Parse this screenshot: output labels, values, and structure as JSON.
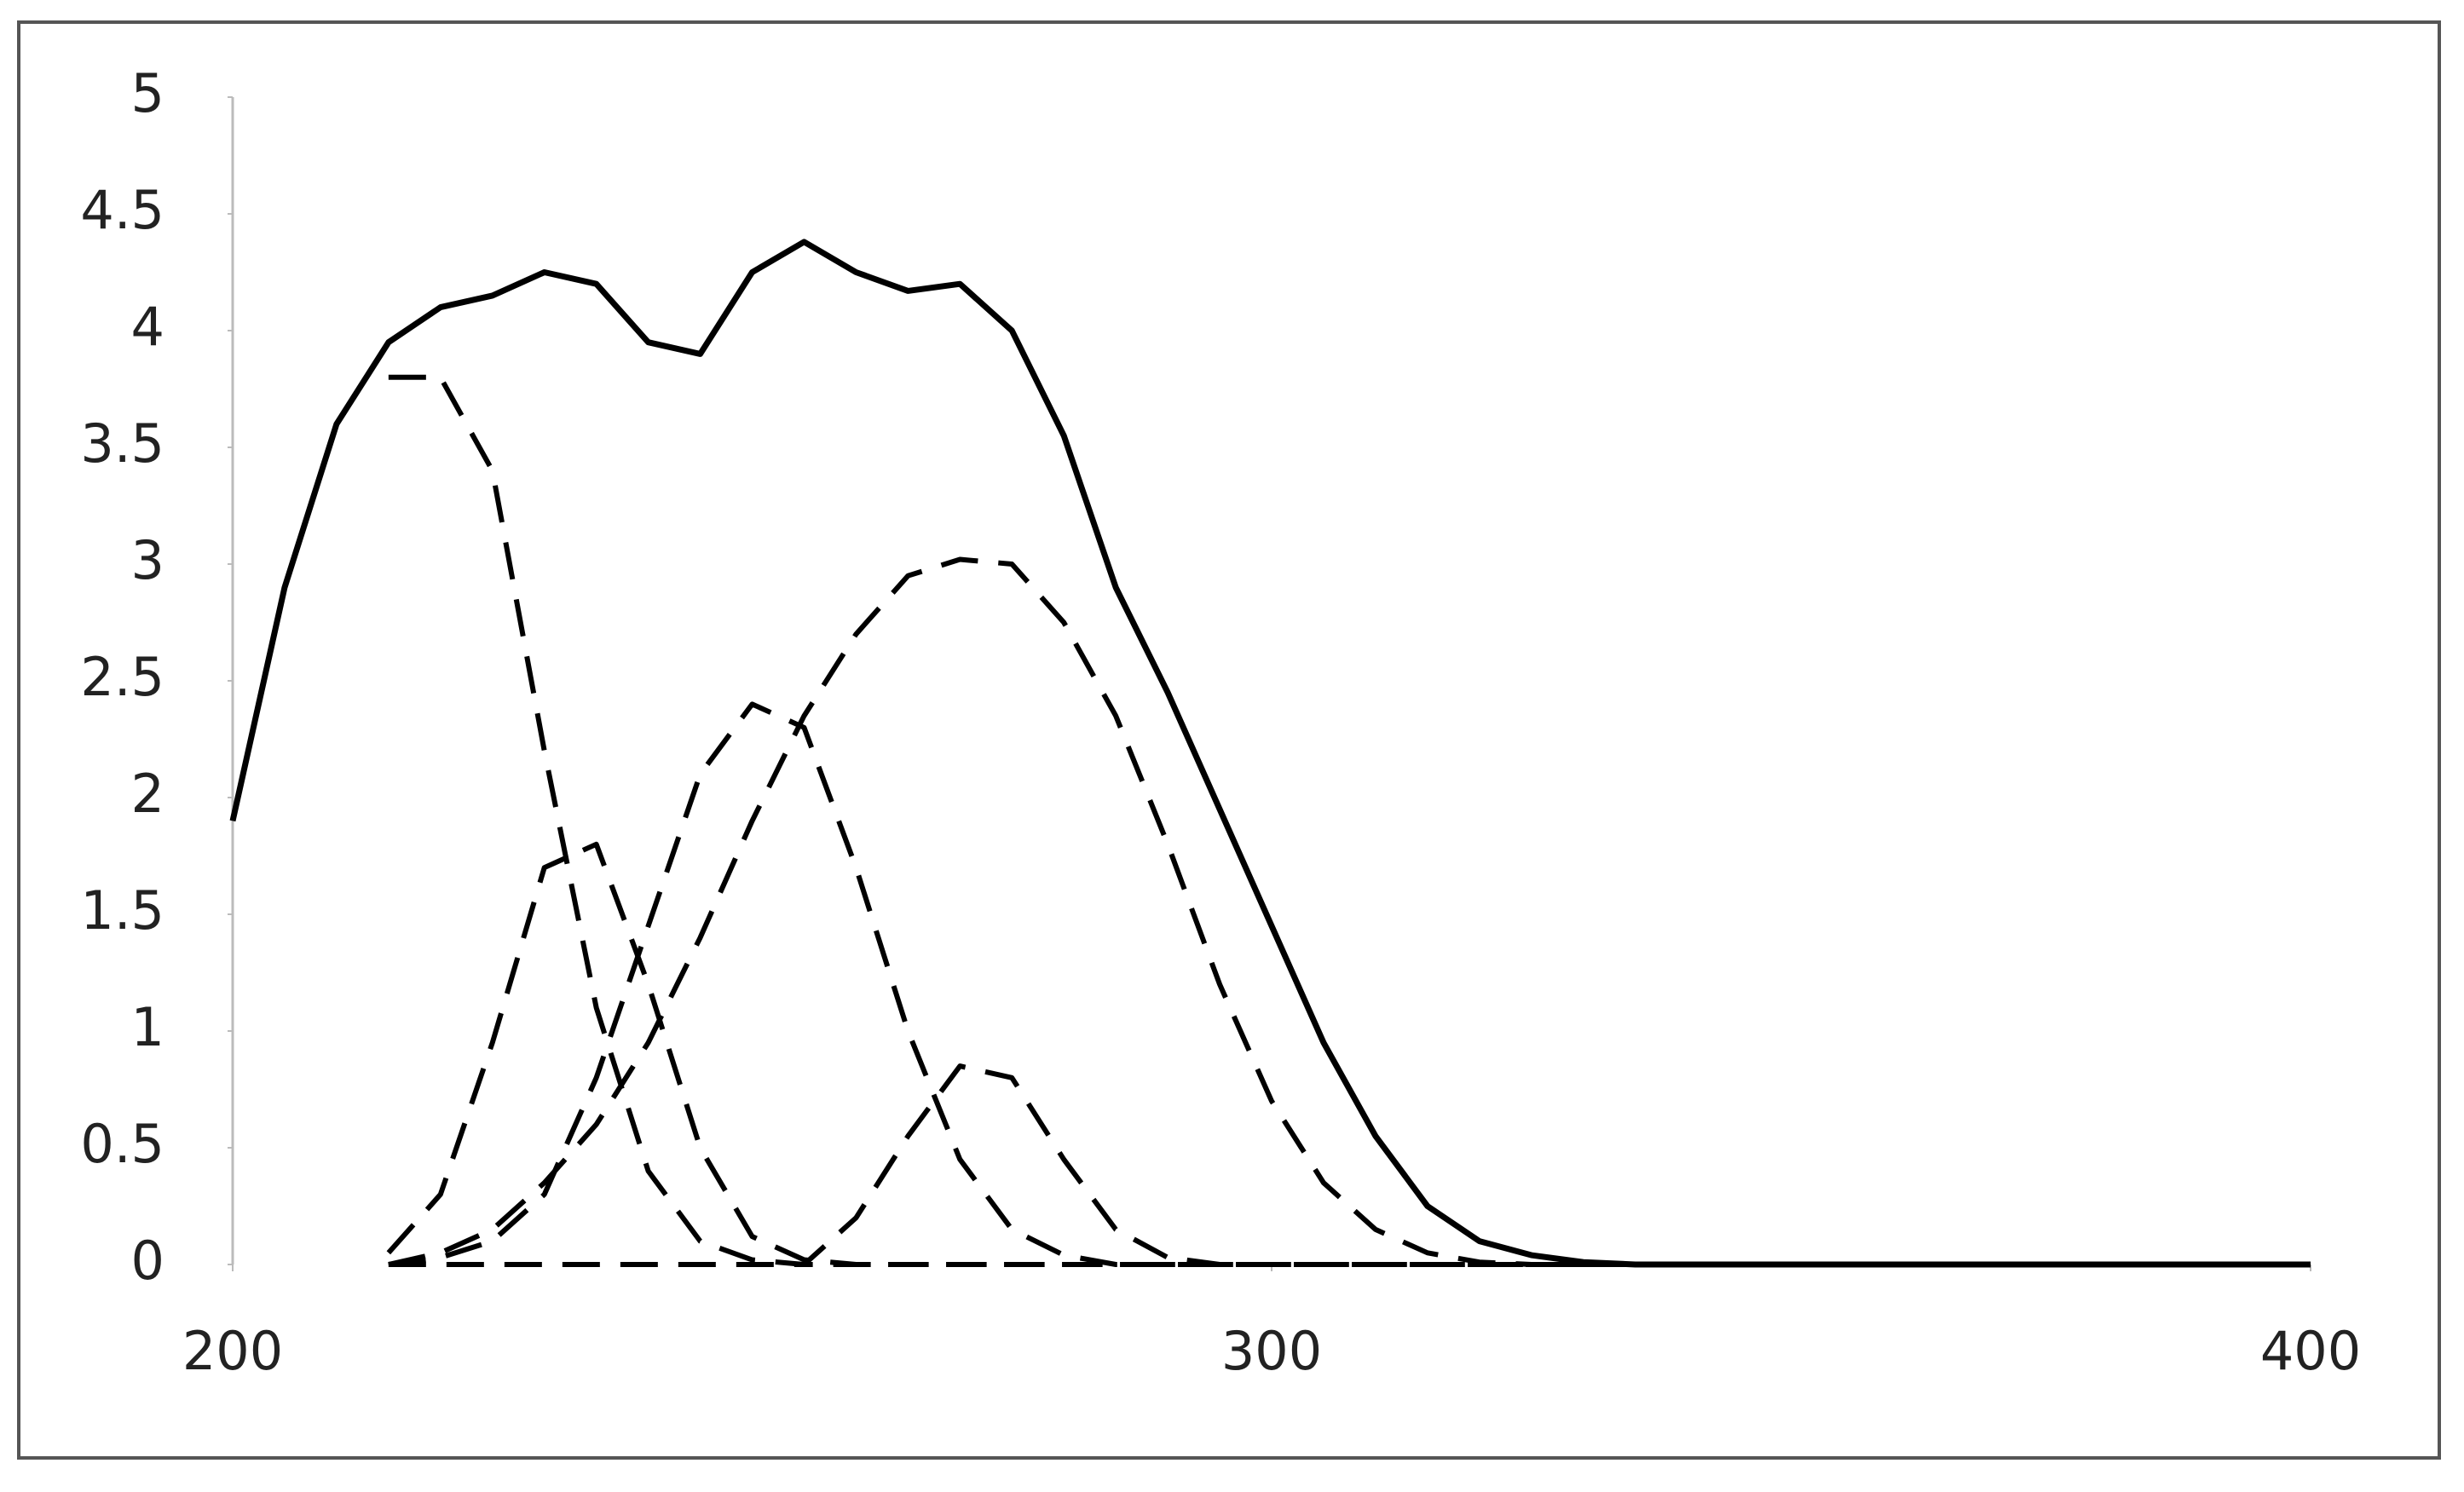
{
  "chart_data": {
    "type": "line",
    "x": [
      200,
      205,
      210,
      215,
      220,
      225,
      230,
      235,
      240,
      245,
      250,
      255,
      260,
      265,
      270,
      275,
      280,
      285,
      290,
      295,
      300,
      305,
      310,
      315,
      320,
      325,
      330,
      335,
      340,
      345,
      350,
      355,
      360,
      365,
      370,
      375,
      380,
      385,
      390,
      395,
      400
    ],
    "series": [
      {
        "color": "#000000",
        "line_style": "solid",
        "values": [
          1.9,
          2.9,
          3.6,
          3.95,
          4.1,
          4.15,
          4.25,
          4.2,
          3.95,
          3.9,
          4.25,
          4.38,
          4.25,
          4.17,
          4.2,
          4.0,
          3.55,
          2.9,
          2.45,
          1.95,
          1.45,
          0.95,
          0.55,
          0.25,
          0.1,
          0.04,
          0.01,
          0,
          0,
          0,
          0,
          0,
          0,
          0,
          0,
          0,
          0,
          0,
          0,
          0,
          0
        ]
      },
      {
        "color": "#000000",
        "line_style": "dashed",
        "values": [
          null,
          null,
          null,
          3.8,
          3.8,
          3.4,
          2.2,
          1.1,
          0.4,
          0.1,
          0.02,
          0,
          0,
          0,
          0,
          0,
          0,
          0,
          0,
          0,
          0,
          0,
          0,
          0,
          0,
          0,
          0,
          0,
          0,
          0,
          0,
          0,
          0,
          0,
          0,
          0,
          0,
          0,
          0,
          0,
          0
        ]
      },
      {
        "color": "#000000",
        "line_style": "dashed",
        "values": [
          null,
          null,
          null,
          0.05,
          0.3,
          0.95,
          1.7,
          1.8,
          1.2,
          0.5,
          0.12,
          0.02,
          0,
          0,
          0,
          0,
          0,
          0,
          0,
          0,
          0,
          0,
          0,
          0,
          0,
          0,
          0,
          0,
          0,
          0,
          0,
          0,
          0,
          0,
          0,
          0,
          0,
          0,
          0,
          0,
          0
        ]
      },
      {
        "color": "#000000",
        "line_style": "dashed",
        "values": [
          null,
          null,
          null,
          0,
          0.03,
          0.1,
          0.3,
          0.8,
          1.45,
          2.1,
          2.4,
          2.3,
          1.7,
          1.0,
          0.45,
          0.15,
          0.04,
          0,
          0,
          0,
          0,
          0,
          0,
          0,
          0,
          0,
          0,
          0,
          0,
          0,
          0,
          0,
          0,
          0,
          0,
          0,
          0,
          0,
          0,
          0,
          0
        ]
      },
      {
        "color": "#000000",
        "line_style": "dashed",
        "values": [
          null,
          null,
          null,
          0,
          0.05,
          0.15,
          0.35,
          0.6,
          0.95,
          1.4,
          1.9,
          2.35,
          2.7,
          2.95,
          3.02,
          3.0,
          2.75,
          2.35,
          1.8,
          1.2,
          0.7,
          0.35,
          0.15,
          0.05,
          0.01,
          0,
          0,
          0,
          0,
          0,
          0,
          0,
          0,
          0,
          0,
          0,
          0,
          0,
          0,
          0,
          0
        ]
      },
      {
        "color": "#000000",
        "line_style": "dashed",
        "values": [
          null,
          null,
          null,
          0,
          0,
          0,
          0,
          0,
          0,
          0,
          0,
          0,
          0.2,
          0.55,
          0.85,
          0.8,
          0.45,
          0.15,
          0.03,
          0,
          0,
          0,
          0,
          0,
          0,
          0,
          0,
          0,
          0,
          0,
          0,
          0,
          0,
          0,
          0,
          0,
          0,
          0,
          0,
          0,
          0
        ]
      }
    ],
    "xlim": [
      200,
      400
    ],
    "xticks": [
      200,
      300,
      400
    ],
    "ylim": [
      0,
      5
    ],
    "yticks": [
      0,
      0.5,
      1,
      1.5,
      2,
      2.5,
      3,
      3.5,
      4,
      4.5,
      5
    ]
  }
}
